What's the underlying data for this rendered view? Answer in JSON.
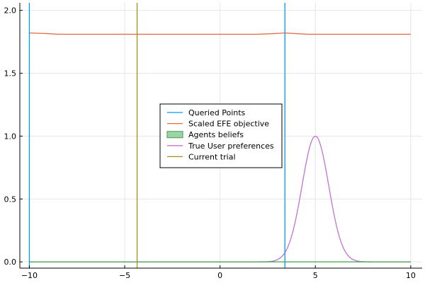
{
  "chart_data": {
    "type": "line",
    "title": "",
    "xlabel": "",
    "ylabel": "",
    "xlim": [
      -10.5,
      10.6
    ],
    "ylim": [
      -0.05,
      2.06
    ],
    "x_ticks": [
      -10,
      -5,
      0,
      5,
      10
    ],
    "x_tick_labels": [
      "−10",
      "−5",
      "0",
      "5",
      "10"
    ],
    "y_ticks": [
      0.0,
      0.5,
      1.0,
      1.5,
      2.0
    ],
    "y_tick_labels": [
      "0.0",
      "0.5",
      "1.0",
      "1.5",
      "2.0"
    ],
    "grid": true,
    "legend_position": "center",
    "series": [
      {
        "name": "Queried Points",
        "kind": "vlines",
        "color": "#009AFA",
        "x": [
          -10,
          3.4
        ]
      },
      {
        "name": "Scaled EFE objective",
        "kind": "line",
        "color": "#E26F46",
        "x": [
          -10,
          -9,
          -8.5,
          -8,
          -6,
          -4,
          -2,
          0,
          2,
          2.8,
          3.4,
          4,
          4.6,
          6,
          8,
          10
        ],
        "y": [
          1.82,
          1.815,
          1.81,
          1.81,
          1.81,
          1.81,
          1.81,
          1.81,
          1.81,
          1.815,
          1.82,
          1.815,
          1.81,
          1.81,
          1.81,
          1.81
        ]
      },
      {
        "name": "Agents beliefs",
        "kind": "line",
        "color": "#3DA44D",
        "x": [
          -10,
          10
        ],
        "y": [
          0.0,
          0.0
        ]
      },
      {
        "name": "True User preferences",
        "kind": "gaussian",
        "color": "#C271D2",
        "mean": 5,
        "std": 0.7,
        "peak": 1.0,
        "x_range": [
          -10,
          10
        ]
      },
      {
        "name": "Current trial",
        "kind": "vlines",
        "color": "#AC8D18",
        "x": [
          -4.35
        ]
      }
    ]
  }
}
